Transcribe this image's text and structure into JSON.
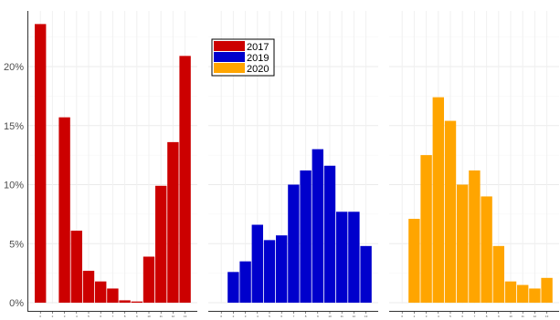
{
  "chart_data": {
    "type": "bar",
    "title": "",
    "xlabel": "",
    "ylabel": "",
    "ylim": [
      0,
      25
    ],
    "y_ticks": [
      0,
      5,
      10,
      15,
      20
    ],
    "y_tick_format": "{v}%",
    "grid": true,
    "legend": {
      "placement": "top-center",
      "entries": [
        {
          "label": "2017",
          "color": "#cc0000"
        },
        {
          "label": "2019",
          "color": "#0000cc"
        },
        {
          "label": "2020",
          "color": "#ffa500"
        }
      ]
    },
    "x_ticks": [
      "0",
      "2",
      "3",
      "4",
      "5",
      "6",
      "7",
      "8",
      "9",
      "10",
      "11",
      "12",
      "13"
    ],
    "panels": [
      {
        "name": "2017",
        "color": "#cc0000",
        "values": [
          23.6,
          0,
          15.7,
          6.1,
          2.7,
          1.8,
          1.2,
          0.2,
          0.1,
          3.9,
          9.9,
          13.6,
          20.9
        ]
      },
      {
        "name": "2019",
        "color": "#0000cc",
        "values": [
          0,
          2.6,
          3.5,
          6.6,
          5.3,
          5.7,
          10.0,
          11.2,
          13.0,
          11.6,
          7.7,
          7.7,
          4.8
        ]
      },
      {
        "name": "2020",
        "color": "#ffa500",
        "values": [
          0,
          7.1,
          12.5,
          17.4,
          15.4,
          10.0,
          11.2,
          9.0,
          4.8,
          1.8,
          1.5,
          1.2,
          2.1
        ]
      }
    ]
  }
}
